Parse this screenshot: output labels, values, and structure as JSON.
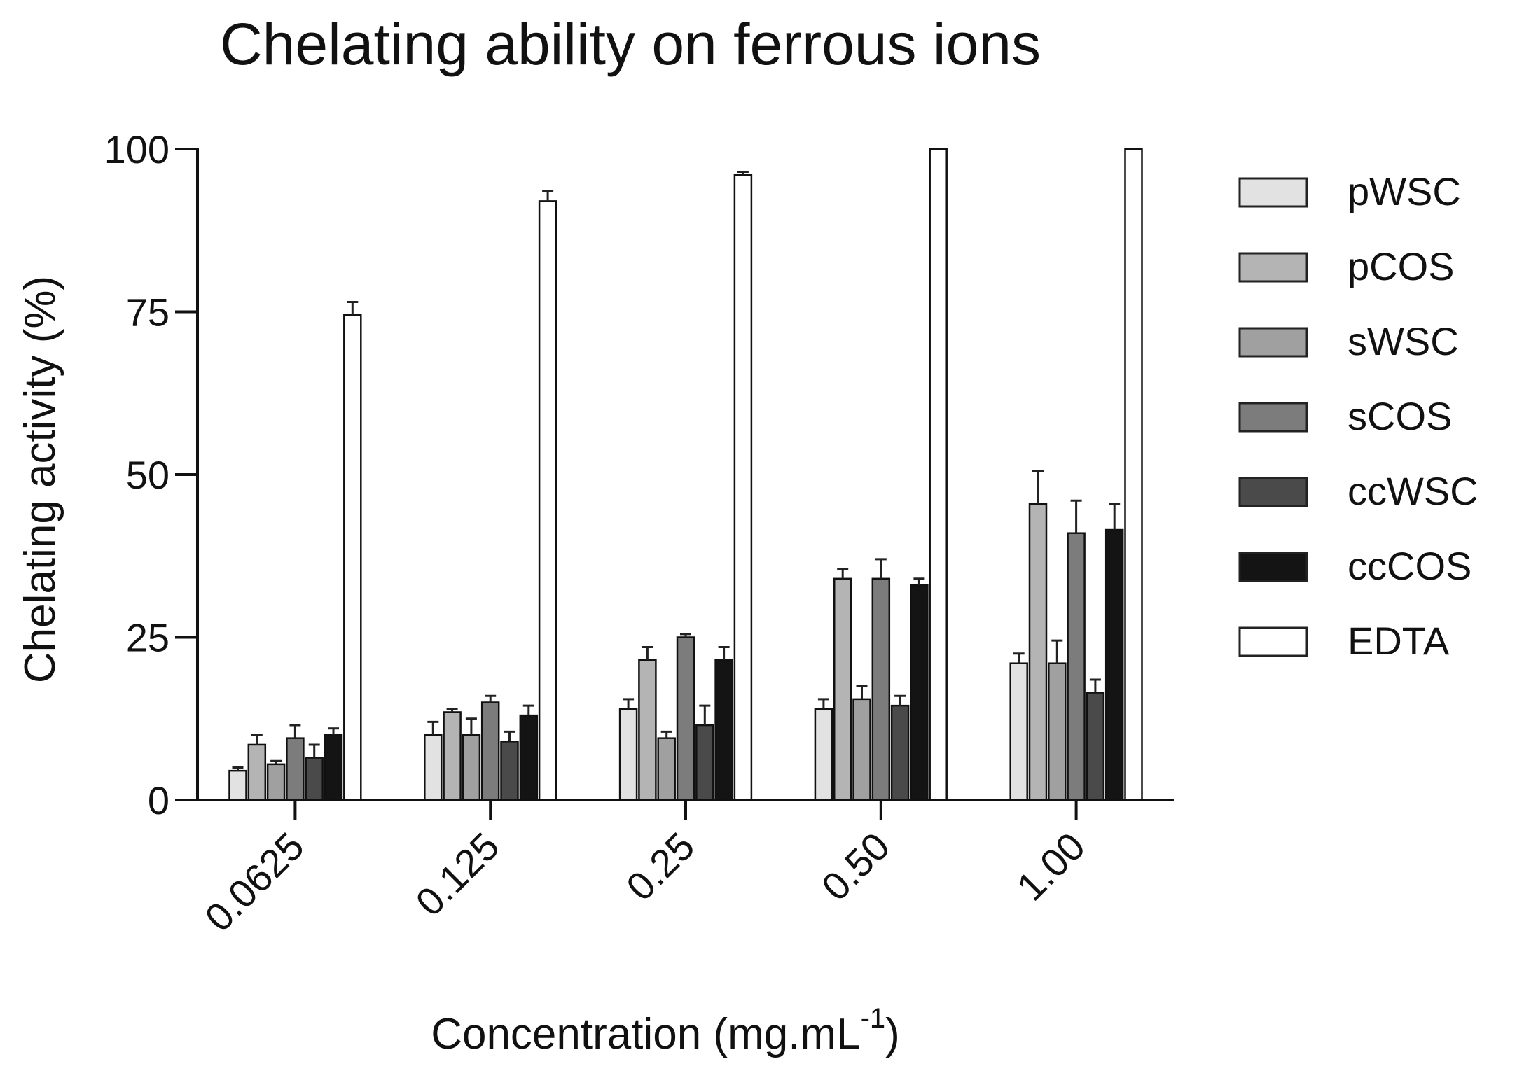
{
  "chart_data": {
    "type": "bar",
    "title": "Chelating ability on ferrous ions",
    "xlabel": "Concentration (mg.mL",
    "xlabel_superscript": "-1",
    "xlabel_suffix": ")",
    "ylabel": "Chelating activity (%)",
    "ylim": [
      0,
      100
    ],
    "yticks": [
      0,
      25,
      50,
      75,
      100
    ],
    "categories": [
      "0.0625",
      "0.125",
      "0.25",
      "0.50",
      "1.00"
    ],
    "legend_position": "right",
    "series": [
      {
        "name": "pWSC",
        "color": "#e2e2e2",
        "values": [
          4.5,
          10.0,
          14.0,
          14.0,
          21.0
        ],
        "errors": [
          0.5,
          2.0,
          1.5,
          1.5,
          1.5
        ]
      },
      {
        "name": "pCOS",
        "color": "#b4b4b4",
        "values": [
          8.5,
          13.5,
          21.5,
          34.0,
          45.5
        ],
        "errors": [
          1.5,
          0.5,
          2.0,
          1.5,
          5.0
        ]
      },
      {
        "name": "sWSC",
        "color": "#a0a0a0",
        "values": [
          5.5,
          10.0,
          9.5,
          15.5,
          21.0
        ],
        "errors": [
          0.5,
          2.5,
          1.0,
          2.0,
          3.5
        ]
      },
      {
        "name": "sCOS",
        "color": "#7c7c7c",
        "values": [
          9.5,
          15.0,
          25.0,
          34.0,
          41.0
        ],
        "errors": [
          2.0,
          1.0,
          0.5,
          3.0,
          5.0
        ]
      },
      {
        "name": "ccWSC",
        "color": "#4a4a4a",
        "values": [
          6.5,
          9.0,
          11.5,
          14.5,
          16.5
        ],
        "errors": [
          2.0,
          1.5,
          3.0,
          1.5,
          2.0
        ]
      },
      {
        "name": "ccCOS",
        "color": "#141414",
        "values": [
          10.0,
          13.0,
          21.5,
          33.0,
          41.5
        ],
        "errors": [
          1.0,
          1.5,
          2.0,
          1.0,
          4.0
        ]
      },
      {
        "name": "EDTA",
        "color": "#ffffff",
        "values": [
          74.5,
          92.0,
          96.0,
          100.0,
          100.0
        ],
        "errors": [
          2.0,
          1.5,
          0.5,
          0.0,
          0.0
        ]
      }
    ]
  }
}
